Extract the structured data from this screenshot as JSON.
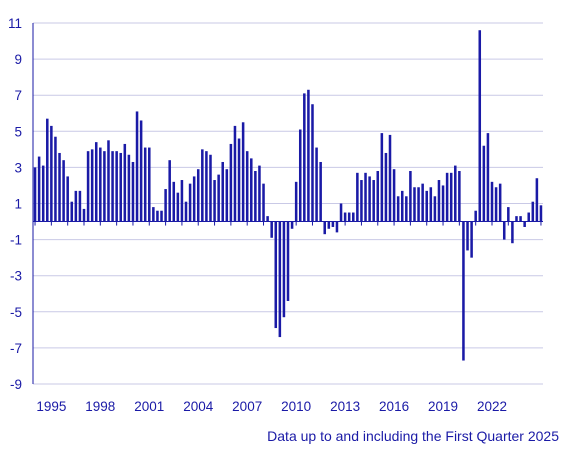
{
  "chart_data": {
    "type": "bar",
    "title": "",
    "xlabel": "",
    "ylabel": "",
    "ylim": [
      -9,
      11
    ],
    "yticks": [
      11,
      9,
      7,
      5,
      3,
      1,
      -1,
      -3,
      -5,
      -7,
      -9
    ],
    "grid": true,
    "bar_color": "#1a1aa6",
    "x_ticks": [
      {
        "label": "1995",
        "index": 4
      },
      {
        "label": "1998",
        "index": 16
      },
      {
        "label": "2001",
        "index": 28
      },
      {
        "label": "2004",
        "index": 40
      },
      {
        "label": "2007",
        "index": 52
      },
      {
        "label": "2010",
        "index": 64
      },
      {
        "label": "2013",
        "index": 76
      },
      {
        "label": "2016",
        "index": 88
      },
      {
        "label": "2019",
        "index": 100
      },
      {
        "label": "2022",
        "index": 112
      }
    ],
    "start": "1994 Q1",
    "end": "2025 Q1",
    "values": [
      3.0,
      3.6,
      3.1,
      5.7,
      5.3,
      4.7,
      3.8,
      3.4,
      2.5,
      1.1,
      1.7,
      1.7,
      0.7,
      3.9,
      4.0,
      4.4,
      4.1,
      3.9,
      4.5,
      3.9,
      3.9,
      3.8,
      4.3,
      3.7,
      3.3,
      6.1,
      5.6,
      4.1,
      4.1,
      0.8,
      0.6,
      0.6,
      1.8,
      3.4,
      2.2,
      1.6,
      2.3,
      1.1,
      2.1,
      2.5,
      2.9,
      4.0,
      3.9,
      3.7,
      2.3,
      2.6,
      3.3,
      2.9,
      4.3,
      5.3,
      4.6,
      5.5,
      3.9,
      3.5,
      2.8,
      3.1,
      2.1,
      0.3,
      -0.9,
      -5.9,
      -6.4,
      -5.3,
      -4.4,
      -0.4,
      2.2,
      5.1,
      7.1,
      7.3,
      6.5,
      4.1,
      3.3,
      -0.7,
      -0.4,
      -0.3,
      -0.6,
      1.0,
      0.5,
      0.5,
      0.5,
      2.7,
      2.3,
      2.7,
      2.5,
      2.3,
      2.8,
      4.9,
      3.8,
      4.8,
      2.9,
      1.4,
      1.7,
      1.4,
      2.8,
      1.9,
      1.9,
      2.1,
      1.7,
      1.9,
      1.4,
      2.3,
      2.0,
      2.7,
      2.7,
      3.1,
      2.8,
      -7.7,
      -1.6,
      -2.0,
      0.6,
      10.6,
      4.2,
      4.9,
      2.2,
      1.9,
      2.1,
      -1.0,
      0.8,
      -1.2,
      0.3,
      0.3,
      -0.3,
      0.5,
      1.1,
      2.4,
      0.9
    ]
  },
  "footnote": "Data up to and including the First Quarter 2025"
}
